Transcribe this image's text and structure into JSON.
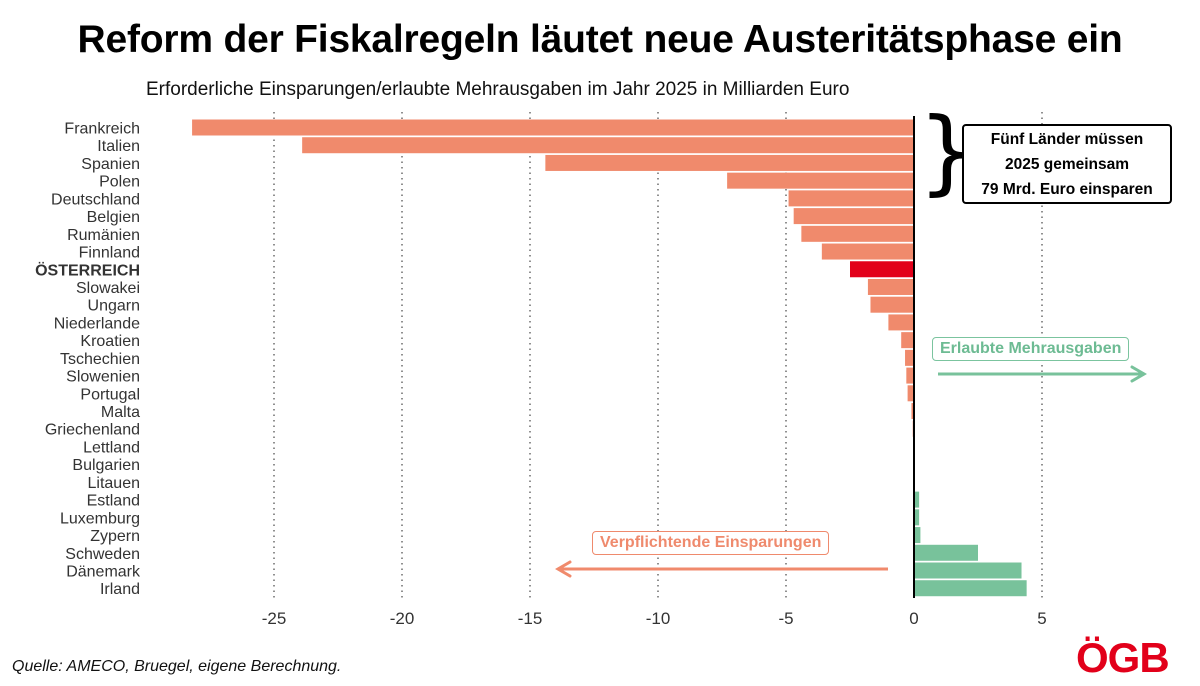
{
  "title": "Reform der Fiskalregeln läutet neue Austeritätsphase ein",
  "subtitle": "Erforderliche Einsparungen/erlaubte Mehrausgaben im Jahr 2025 in Milliarden Euro",
  "source": "Quelle: AMECO, Bruegel, eigene Berechnung.",
  "callout": {
    "line1": "Fünf Länder müssen",
    "line2": "2025 gemeinsam",
    "line3": "79 Mrd. Euro einsparen"
  },
  "labels": {
    "allowed": "Erlaubte Mehrausgaben",
    "required": "Verpflichtende Einsparungen"
  },
  "logo": {
    "text": "ÖGB",
    "color": "#e2001a"
  },
  "colors": {
    "negative": "#f08a6c",
    "highlight": "#e2001a",
    "positive": "#78c29b",
    "grid": "#555555"
  },
  "chart_data": {
    "type": "bar",
    "orientation": "horizontal",
    "categories": [
      "Frankreich",
      "Italien",
      "Spanien",
      "Polen",
      "Deutschland",
      "Belgien",
      "Rumänien",
      "Finnland",
      "ÖSTERREICH",
      "Slowakei",
      "Ungarn",
      "Niederlande",
      "Kroatien",
      "Tschechien",
      "Slowenien",
      "Portugal",
      "Malta",
      "Griechenland",
      "Lettland",
      "Bulgarien",
      "Litauen",
      "Estland",
      "Luxemburg",
      "Zypern",
      "Schweden",
      "Dänemark",
      "Irland"
    ],
    "values": [
      -28.2,
      -23.9,
      -14.4,
      -7.3,
      -4.9,
      -4.7,
      -4.4,
      -3.6,
      -2.5,
      -1.8,
      -1.7,
      -1.0,
      -0.5,
      -0.35,
      -0.3,
      -0.25,
      -0.1,
      -0.05,
      0,
      0,
      0,
      0.2,
      0.2,
      0.25,
      2.5,
      4.2,
      4.4
    ],
    "highlight_category": "ÖSTERREICH",
    "xticks": [
      -25,
      -20,
      -15,
      -10,
      -5,
      0,
      5
    ],
    "xlim": [
      -28.5,
      10
    ],
    "grid": "vertical dotted"
  }
}
